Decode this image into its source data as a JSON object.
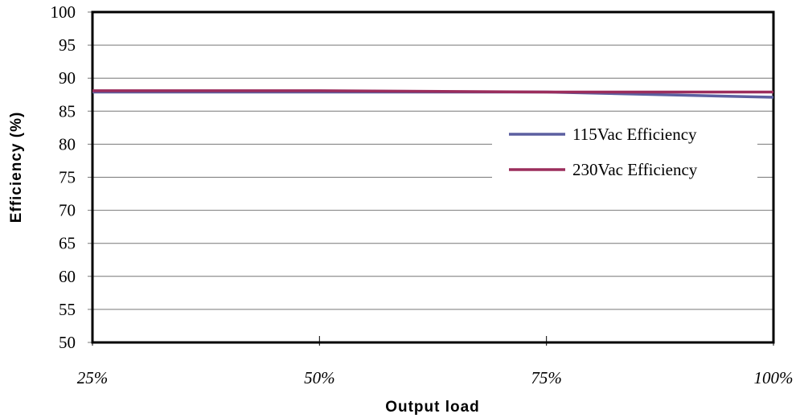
{
  "chart_data": {
    "type": "line",
    "categories": [
      "25%",
      "50%",
      "75%",
      "100%"
    ],
    "series": [
      {
        "name": "115Vac Efficiency",
        "color": "#5b5fa0",
        "values": [
          87.9,
          87.9,
          87.9,
          87.1
        ]
      },
      {
        "name": "230Vac Efficiency",
        "color": "#9b2d5c",
        "values": [
          88.1,
          88.1,
          87.9,
          87.9
        ]
      }
    ],
    "xlabel": "Output load",
    "ylabel": "Efficiency (%)",
    "ylim": [
      50,
      100
    ],
    "yticks": [
      "50",
      "55",
      "60",
      "65",
      "70",
      "75",
      "80",
      "85",
      "90",
      "95",
      "100"
    ],
    "grid": true,
    "legend": "right"
  }
}
